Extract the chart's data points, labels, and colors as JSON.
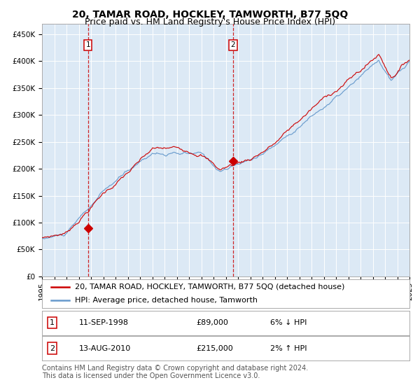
{
  "title": "20, TAMAR ROAD, HOCKLEY, TAMWORTH, B77 5QQ",
  "subtitle": "Price paid vs. HM Land Registry's House Price Index (HPI)",
  "ylim": [
    0,
    470000
  ],
  "yticks": [
    0,
    50000,
    100000,
    150000,
    200000,
    250000,
    300000,
    350000,
    400000,
    450000
  ],
  "ytick_labels": [
    "£0",
    "£50K",
    "£100K",
    "£150K",
    "£200K",
    "£250K",
    "£300K",
    "£350K",
    "£400K",
    "£450K"
  ],
  "x_start_year": 1995,
  "x_end_year": 2025,
  "background_color": "#ffffff",
  "plot_bg_color": "#dce9f5",
  "grid_color": "#ffffff",
  "hpi_line_color": "#6699cc",
  "price_line_color": "#cc0000",
  "sale1_date_num": 3.75,
  "sale1_value": 89000,
  "sale1_label": "11-SEP-1998",
  "sale1_price": "£89,000",
  "sale1_hpi": "6% ↓ HPI",
  "sale2_date_num": 15.6,
  "sale2_value": 215000,
  "sale2_label": "13-AUG-2010",
  "sale2_price": "£215,000",
  "sale2_hpi": "2% ↑ HPI",
  "legend_line1": "20, TAMAR ROAD, HOCKLEY, TAMWORTH, B77 5QQ (detached house)",
  "legend_line2": "HPI: Average price, detached house, Tamworth",
  "footnote": "Contains HM Land Registry data © Crown copyright and database right 2024.\nThis data is licensed under the Open Government Licence v3.0.",
  "title_fontsize": 10,
  "subtitle_fontsize": 9,
  "tick_fontsize": 7.5,
  "legend_fontsize": 8,
  "footnote_fontsize": 7
}
